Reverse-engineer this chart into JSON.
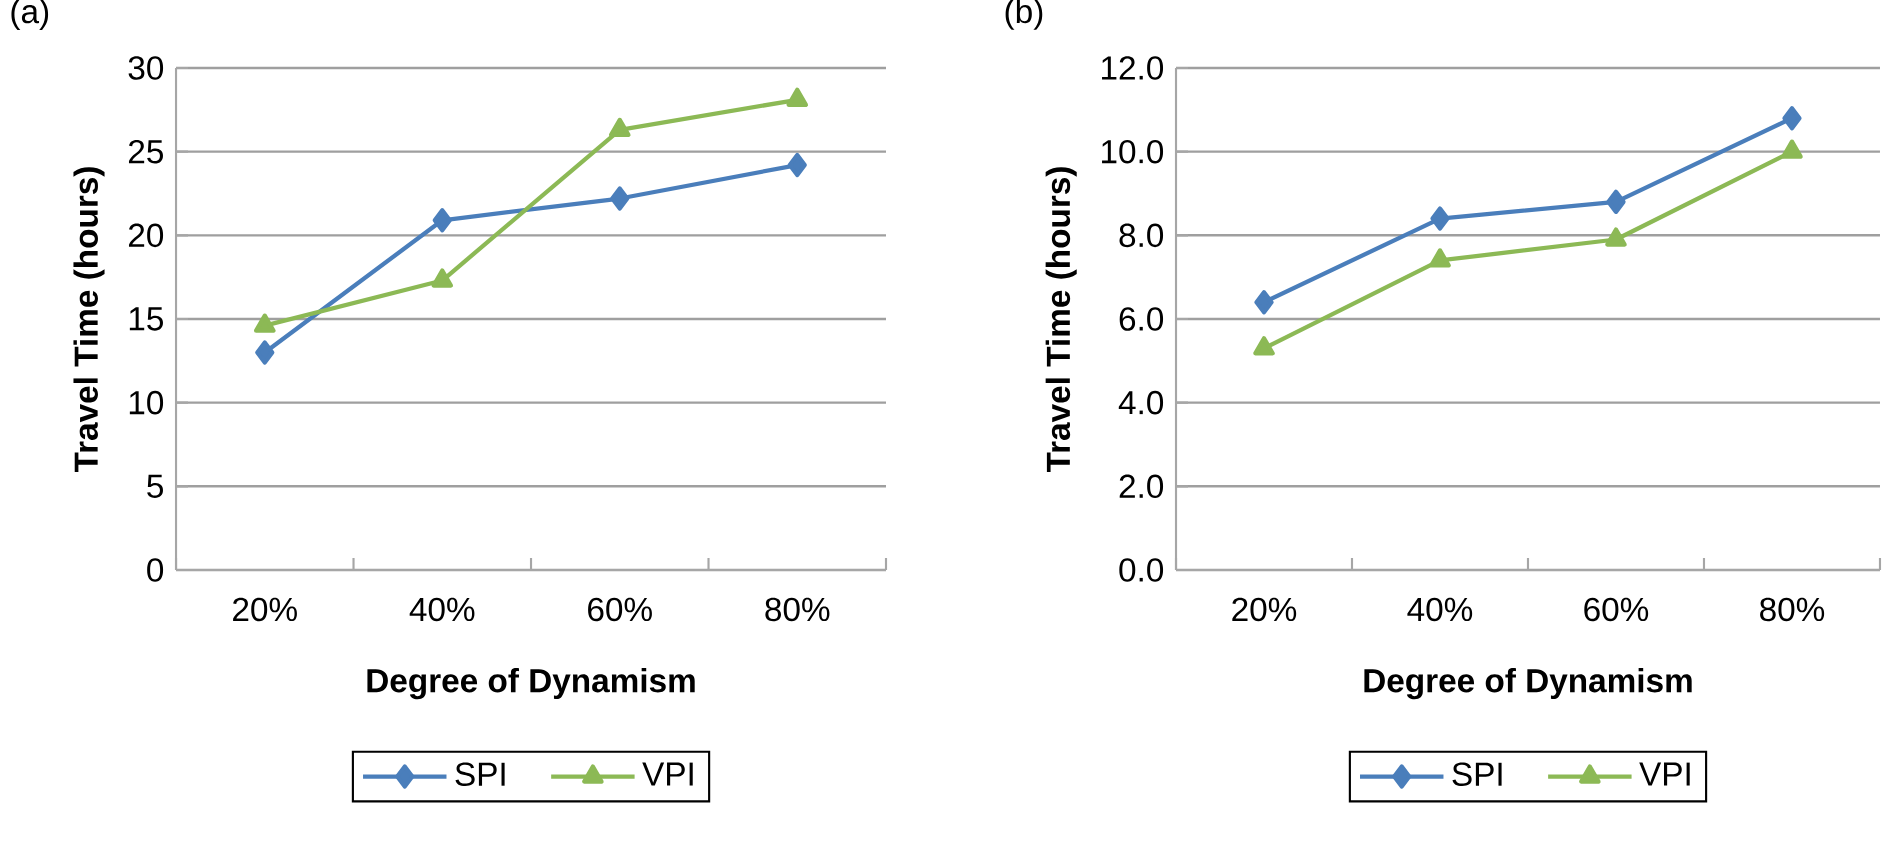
{
  "chart_data": [
    {
      "type": "line",
      "title": "(a)",
      "xlabel": "Degree of Dynamism",
      "ylabel": "Travel Time (hours)",
      "categories": [
        "20%",
        "40%",
        "60%",
        "80%"
      ],
      "series": [
        {
          "name": "SPI",
          "color": "#4a7ebb",
          "marker": "diamond",
          "values": [
            13.0,
            20.9,
            22.2,
            24.2
          ]
        },
        {
          "name": "VPI",
          "color": "#8cb955",
          "marker": "triangle",
          "values": [
            14.6,
            17.3,
            26.3,
            28.1
          ]
        }
      ],
      "ylim": [
        0,
        30
      ],
      "yticks": [
        0,
        5,
        10,
        15,
        20,
        25,
        30
      ],
      "grid": "y",
      "legend": "bottom"
    },
    {
      "type": "line",
      "title": "(b)",
      "xlabel": "Degree of Dynamism",
      "ylabel": "Travel Time (hours)",
      "categories": [
        "20%",
        "40%",
        "60%",
        "80%"
      ],
      "series": [
        {
          "name": "SPI",
          "color": "#4a7ebb",
          "marker": "diamond",
          "values": [
            6.4,
            8.4,
            8.8,
            10.8
          ]
        },
        {
          "name": "VPI",
          "color": "#8cb955",
          "marker": "triangle",
          "values": [
            5.3,
            7.4,
            7.9,
            10.0
          ]
        }
      ],
      "ylim": [
        0,
        12
      ],
      "yticks": [
        {
          "value": 0,
          "label": "0.0"
        },
        {
          "value": 2,
          "label": "2.0"
        },
        {
          "value": 4,
          "label": "4.0"
        },
        {
          "value": 6,
          "label": "6.0"
        },
        {
          "value": 8,
          "label": "8.0"
        },
        {
          "value": 10,
          "label": "10.0"
        },
        {
          "value": 12,
          "label": "12.0"
        }
      ],
      "grid": "y",
      "legend": "bottom"
    }
  ]
}
